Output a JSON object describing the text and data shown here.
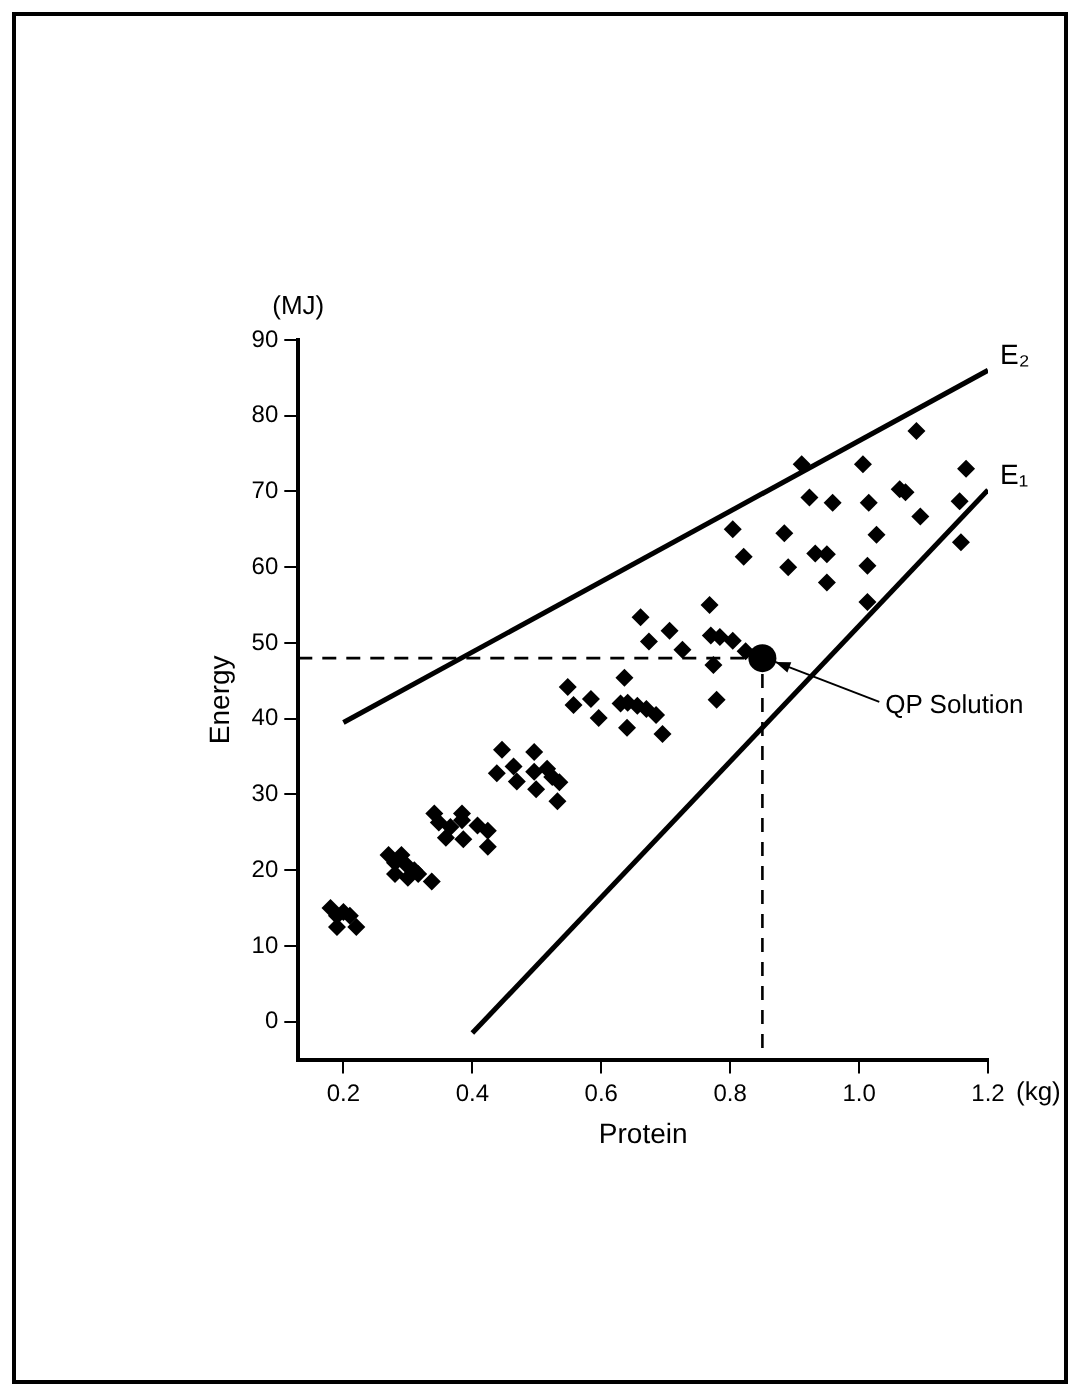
{
  "chart_data": {
    "type": "scatter",
    "xlabel": "Protein",
    "ylabel": "Energy",
    "annotations": [
      "(MJ)",
      "(kg)",
      {
        "text": "QP Solution",
        "x": 0.87,
        "y": 47.5
      }
    ],
    "xlim": [
      0.13,
      1.2
    ],
    "ylim": [
      -5,
      90
    ],
    "xticks": [
      0.2,
      0.4,
      0.6,
      0.8,
      {
        "value": 1,
        "label": "1.0"
      },
      1.2
    ],
    "yticks": [
      0,
      10,
      20,
      30,
      40,
      50,
      60,
      70,
      80,
      90
    ],
    "grid": false,
    "legend": false,
    "marker": "diamond",
    "series": [
      {
        "color": "#000000",
        "x": [
          1.089,
          0.911,
          1.006,
          1.166,
          0.923,
          0.959,
          1.015,
          1.063,
          1.072,
          1.156,
          1.095,
          0.804,
          0.884,
          1.027,
          0.821,
          0.89,
          0.932,
          0.95,
          1.013,
          0.95,
          1.158,
          1.013,
          0.768,
          0.661,
          0.706,
          0.674,
          0.726,
          0.77,
          0.784,
          0.804,
          0.824,
          0.774,
          0.779,
          0.548,
          0.636,
          0.557,
          0.584,
          0.596,
          0.63,
          0.641,
          0.656,
          0.67,
          0.685,
          0.64,
          0.695,
          0.446,
          0.496,
          0.464,
          0.438,
          0.469,
          0.496,
          0.516,
          0.524,
          0.535,
          0.499,
          0.532,
          0.341,
          0.384,
          0.348,
          0.384,
          0.366,
          0.408,
          0.424,
          0.386,
          0.424,
          0.359,
          0.27,
          0.28,
          0.299,
          0.31,
          0.316,
          0.28,
          0.3,
          0.337,
          0.29,
          0.18,
          0.19,
          0.22,
          0.19,
          0.21,
          0.2
        ],
        "values": [
          78,
          73.6,
          73.6,
          73,
          69.2,
          68.5,
          68.5,
          70.3,
          69.9,
          68.7,
          66.7,
          65,
          64.5,
          64.3,
          61.4,
          60,
          61.8,
          61.7,
          60.2,
          58,
          63.3,
          55.4,
          55,
          53.4,
          51.6,
          50.2,
          49.1,
          51,
          50.8,
          50.3,
          48.9,
          47.1,
          42.5,
          44.2,
          45.4,
          41.8,
          42.6,
          40.1,
          42,
          42.1,
          41.7,
          41.3,
          40.5,
          38.8,
          38,
          35.9,
          35.6,
          33.7,
          32.8,
          31.7,
          33,
          33.4,
          32.3,
          31.6,
          30.7,
          29.1,
          27.5,
          27.5,
          26.3,
          26.6,
          25.7,
          25.9,
          25.2,
          24.1,
          23.1,
          24.3,
          22,
          21,
          20.6,
          20,
          19.5,
          19.5,
          19,
          18.5,
          22,
          15,
          14,
          12.5,
          12.5,
          14,
          14.5
        ]
      },
      {
        "color": "#000000",
        "marker": "circle",
        "x": [
          0.85
        ],
        "values": [
          48
        ]
      },
      {
        "type": "line",
        "color": "#000000",
        "line_style": "dashed",
        "marker": "none",
        "x": [
          0.13,
          0.85,
          0.85
        ],
        "values": [
          48,
          48,
          -5
        ]
      },
      {
        "type": "line",
        "name": "E₁",
        "color": "#000000",
        "line_style": "solid",
        "marker": "none",
        "x": [
          0.4,
          1.2
        ],
        "values": [
          -1.5,
          70.2
        ]
      },
      {
        "type": "line",
        "name": "E₂",
        "color": "#000000",
        "line_style": "solid",
        "marker": "none",
        "x": [
          0.2,
          1.2
        ],
        "values": [
          39.5,
          86
        ]
      }
    ]
  }
}
